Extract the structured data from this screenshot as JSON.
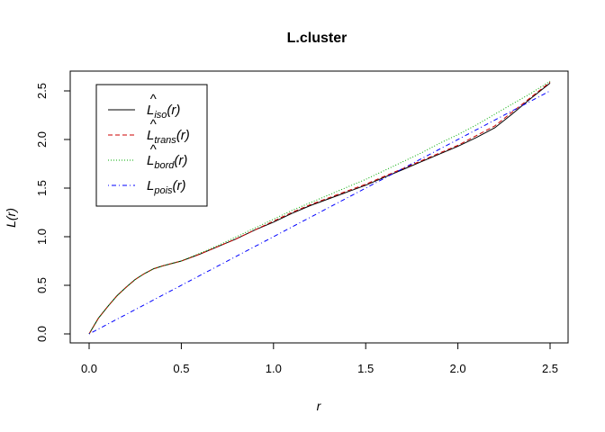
{
  "chart_data": {
    "type": "line",
    "title": "L.cluster",
    "xlabel": "r",
    "ylabel": "L(r)",
    "xlim": [
      0,
      2.5
    ],
    "ylim": [
      0,
      2.6
    ],
    "x_ticks": [
      "0.0",
      "0.5",
      "1.0",
      "1.5",
      "2.0",
      "2.5"
    ],
    "y_ticks": [
      "0.0",
      "0.5",
      "1.0",
      "1.5",
      "2.0",
      "2.5"
    ],
    "grid": false,
    "legend_position": "top-left",
    "legend": [
      {
        "main": "L",
        "hat": "^",
        "sub": "iso",
        "arg": "(r)"
      },
      {
        "main": "L",
        "hat": "^",
        "sub": "trans",
        "arg": "(r)"
      },
      {
        "main": "L",
        "hat": "^",
        "sub": "bord",
        "arg": "(r)"
      },
      {
        "main": "L",
        "hat": "",
        "sub": "pois",
        "arg": "(r)"
      }
    ],
    "series": [
      {
        "name": "iso",
        "color": "#000000",
        "dash": "solid",
        "x": [
          0,
          0.05,
          0.1,
          0.15,
          0.2,
          0.25,
          0.3,
          0.35,
          0.4,
          0.5,
          0.6,
          0.7,
          0.8,
          0.9,
          1.0,
          1.1,
          1.2,
          1.3,
          1.4,
          1.5,
          1.6,
          1.7,
          1.8,
          1.9,
          2.0,
          2.1,
          2.2,
          2.3,
          2.4,
          2.5
        ],
        "y": [
          0.0,
          0.16,
          0.28,
          0.39,
          0.48,
          0.56,
          0.62,
          0.67,
          0.7,
          0.75,
          0.82,
          0.9,
          0.98,
          1.07,
          1.15,
          1.24,
          1.32,
          1.39,
          1.46,
          1.53,
          1.61,
          1.69,
          1.77,
          1.85,
          1.93,
          2.02,
          2.12,
          2.27,
          2.43,
          2.58
        ]
      },
      {
        "name": "trans",
        "color": "#cc0000",
        "dash": "dashed",
        "x": [
          0,
          0.05,
          0.1,
          0.15,
          0.2,
          0.25,
          0.3,
          0.35,
          0.4,
          0.5,
          0.6,
          0.7,
          0.8,
          0.9,
          1.0,
          1.1,
          1.2,
          1.3,
          1.4,
          1.5,
          1.6,
          1.7,
          1.8,
          1.9,
          2.0,
          2.1,
          2.2,
          2.3,
          2.4,
          2.5
        ],
        "y": [
          0.0,
          0.16,
          0.28,
          0.39,
          0.48,
          0.56,
          0.62,
          0.67,
          0.7,
          0.75,
          0.82,
          0.9,
          0.98,
          1.07,
          1.16,
          1.25,
          1.33,
          1.4,
          1.47,
          1.54,
          1.62,
          1.7,
          1.78,
          1.86,
          1.94,
          2.04,
          2.14,
          2.29,
          2.44,
          2.59
        ]
      },
      {
        "name": "bord",
        "color": "#00aa00",
        "dash": "dotted",
        "x": [
          0,
          0.05,
          0.1,
          0.15,
          0.2,
          0.25,
          0.3,
          0.35,
          0.4,
          0.5,
          0.6,
          0.7,
          0.8,
          0.9,
          1.0,
          1.1,
          1.2,
          1.3,
          1.4,
          1.5,
          1.6,
          1.7,
          1.8,
          1.9,
          2.0,
          2.1,
          2.2,
          2.3,
          2.4,
          2.5
        ],
        "y": [
          0.0,
          0.16,
          0.28,
          0.39,
          0.48,
          0.56,
          0.62,
          0.67,
          0.7,
          0.75,
          0.83,
          0.91,
          1.0,
          1.09,
          1.18,
          1.27,
          1.35,
          1.43,
          1.51,
          1.59,
          1.68,
          1.77,
          1.86,
          1.96,
          2.05,
          2.15,
          2.26,
          2.37,
          2.48,
          2.6
        ]
      },
      {
        "name": "pois",
        "color": "#0000ff",
        "dash": "dotdash",
        "x": [
          0,
          2.5
        ],
        "y": [
          0,
          2.5
        ]
      }
    ]
  }
}
